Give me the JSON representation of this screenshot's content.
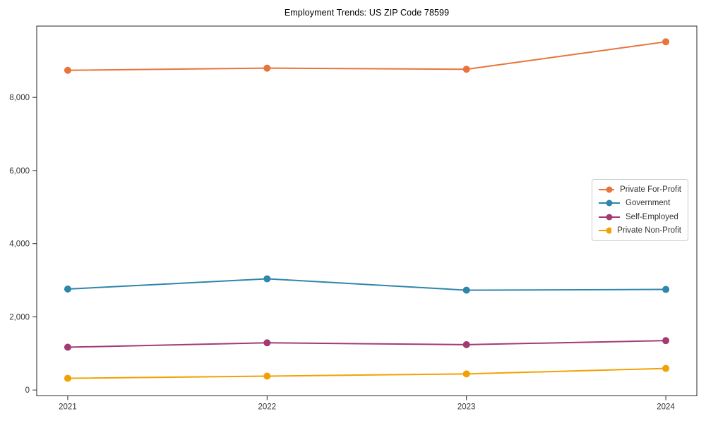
{
  "chart_data": {
    "type": "line",
    "title": "Employment Trends: US ZIP Code 78599",
    "xlabel": "",
    "ylabel": "",
    "categories": [
      "2021",
      "2022",
      "2023",
      "2024"
    ],
    "series": [
      {
        "name": "Private For-Profit",
        "color": "#E8743B",
        "values": [
          8740,
          8800,
          8770,
          9520
        ]
      },
      {
        "name": "Government",
        "color": "#2E86AB",
        "values": [
          2760,
          3040,
          2730,
          2750
        ]
      },
      {
        "name": "Self-Employed",
        "color": "#A23B72",
        "values": [
          1170,
          1290,
          1240,
          1350
        ]
      },
      {
        "name": "Private Non-Profit",
        "color": "#F2A104",
        "values": [
          320,
          380,
          440,
          590
        ]
      }
    ],
    "yticks": [
      {
        "value": 0,
        "label": "0"
      },
      {
        "value": 2000,
        "label": "2,000"
      },
      {
        "value": 4000,
        "label": "4,000"
      },
      {
        "value": 6000,
        "label": "6,000"
      },
      {
        "value": 8000,
        "label": "8,000"
      }
    ],
    "ylim": [
      -160,
      9950
    ],
    "grid": false,
    "legend_position": "center-right",
    "marker": "circle",
    "axis_color": "#262626",
    "text_color": "#333333",
    "legend_border_color": "#cccccc",
    "legend_background": "#ffffff"
  }
}
